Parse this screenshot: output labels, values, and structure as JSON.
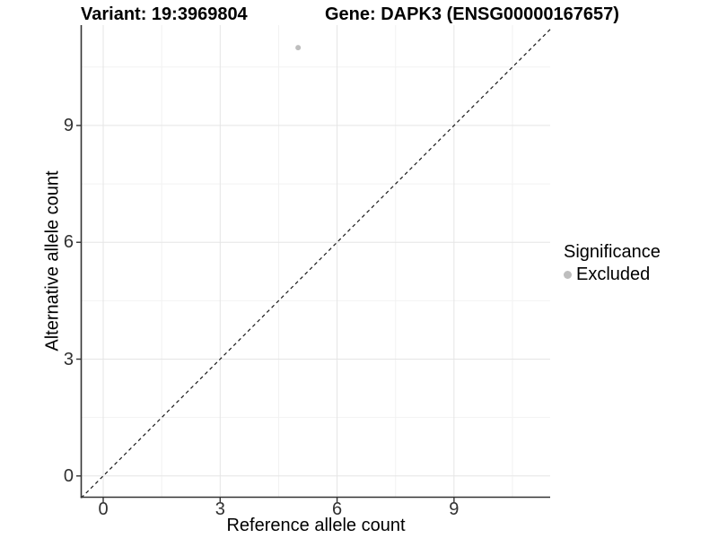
{
  "chart_data": {
    "type": "scatter",
    "titles": {
      "variant": "Variant: 19:3969804",
      "gene": "Gene: DAPK3 (ENSG00000167657)"
    },
    "xlabel": "Reference allele count",
    "ylabel": "Alternative allele count",
    "x_ticks": [
      0,
      3,
      6,
      9
    ],
    "y_ticks": [
      0,
      3,
      6,
      9
    ],
    "x_minor_ticks": [
      1.5,
      4.5,
      7.5,
      10.5
    ],
    "y_minor_ticks": [
      1.5,
      4.5,
      7.5,
      10.5
    ],
    "xlim": [
      -0.56,
      11.47
    ],
    "ylim": [
      -0.56,
      11.58
    ],
    "grid": true,
    "legend_position": "right",
    "series": [
      {
        "name": "Excluded",
        "color": "#bebebe",
        "points": [
          {
            "x": 5,
            "y": 11
          }
        ]
      }
    ],
    "reference_line": {
      "type": "identity",
      "style": "dashed",
      "color": "#1a1a1a"
    },
    "colors": {
      "major_grid": "#e5e5e5",
      "minor_grid": "#f2f2f2",
      "axis_line": "#333333",
      "point": "#bebebe"
    }
  },
  "legend": {
    "title": "Significance",
    "items": [
      {
        "label": "Excluded",
        "color": "#bebebe"
      }
    ]
  }
}
